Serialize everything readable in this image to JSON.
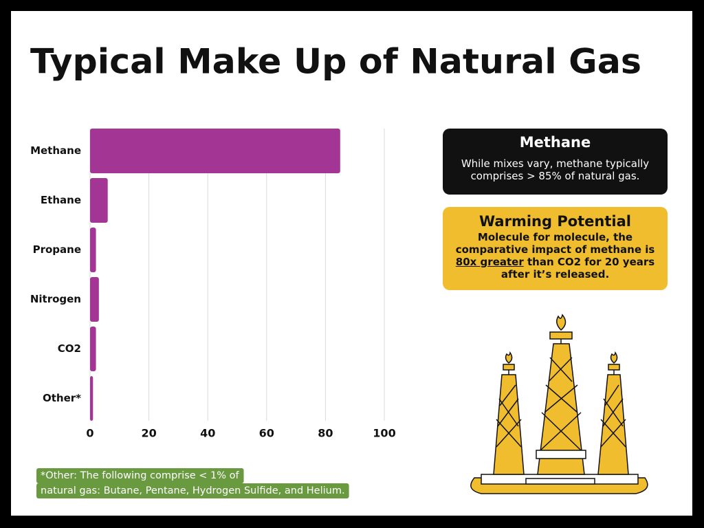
{
  "chart_data": {
    "type": "bar",
    "orientation": "horizontal",
    "title": "Typical Make Up of Natural Gas",
    "categories": [
      "Methane",
      "Ethane",
      "Propane",
      "Nitrogen",
      "CO2",
      "Other*"
    ],
    "values": [
      85,
      6,
      2,
      3,
      2,
      1
    ],
    "color": "#a33594",
    "xlim": [
      0,
      100
    ],
    "xticks": [
      0,
      20,
      40,
      60,
      80,
      100
    ],
    "grid": true
  },
  "methane_box": {
    "title": "Methane",
    "text": "While mixes vary, methane typically comprises > 85% of natural gas."
  },
  "warming_box": {
    "title": "Warming Potential",
    "text_before": "Molecule for molecule, the comparative impact of methane is",
    "text_emphasis": "80x greater",
    "text_after": "than CO2 for 20 years after it’s released."
  },
  "footnote": {
    "lines": [
      "*Other: The following comprise < 1% of",
      "natural gas: Butane, Pentane, Hydrogen Sulfide, and Helium."
    ]
  }
}
